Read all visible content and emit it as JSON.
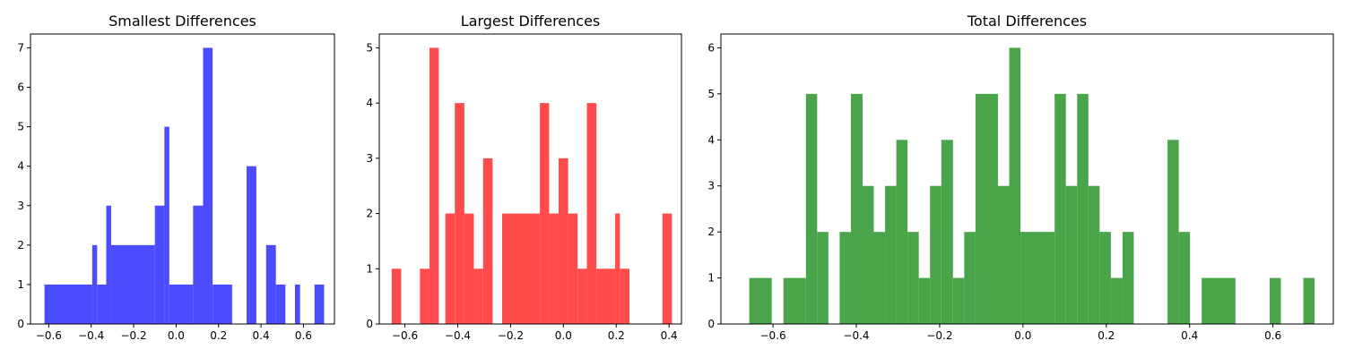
{
  "chart_data": [
    {
      "type": "bar",
      "title": "Smallest Differences",
      "color": "#4b4bff",
      "xlim": [
        -0.686,
        0.746
      ],
      "ylim": [
        0,
        7.35
      ],
      "xticks": [
        -0.6,
        -0.4,
        -0.2,
        0.0,
        0.2,
        0.4,
        0.6
      ],
      "yticks": [
        0,
        1,
        2,
        3,
        4,
        5,
        6,
        7
      ],
      "bins": [
        {
          "x0": -0.62,
          "x1": -0.395,
          "y": 1
        },
        {
          "x0": -0.395,
          "x1": -0.372,
          "y": 2
        },
        {
          "x0": -0.372,
          "x1": -0.329,
          "y": 1
        },
        {
          "x0": -0.329,
          "x1": -0.306,
          "y": 3
        },
        {
          "x0": -0.306,
          "x1": -0.1,
          "y": 2
        },
        {
          "x0": -0.1,
          "x1": -0.055,
          "y": 3
        },
        {
          "x0": -0.055,
          "x1": -0.032,
          "y": 5
        },
        {
          "x0": -0.032,
          "x1": 0.08,
          "y": 1
        },
        {
          "x0": 0.08,
          "x1": 0.127,
          "y": 3
        },
        {
          "x0": 0.127,
          "x1": 0.172,
          "y": 7
        },
        {
          "x0": 0.172,
          "x1": 0.264,
          "y": 1
        },
        {
          "x0": 0.332,
          "x1": 0.378,
          "y": 4
        },
        {
          "x0": 0.424,
          "x1": 0.47,
          "y": 2
        },
        {
          "x0": 0.47,
          "x1": 0.515,
          "y": 1
        },
        {
          "x0": 0.56,
          "x1": 0.584,
          "y": 1
        },
        {
          "x0": 0.652,
          "x1": 0.697,
          "y": 1
        }
      ]
    },
    {
      "type": "bar",
      "title": "Largest Differences",
      "color": "#ff4b4b",
      "xlim": [
        -0.697,
        0.447
      ],
      "ylim": [
        0,
        5.25
      ],
      "xticks": [
        -0.6,
        -0.4,
        -0.2,
        0.0,
        0.2,
        0.4
      ],
      "yticks": [
        0,
        1,
        2,
        3,
        4,
        5
      ],
      "bins": [
        {
          "x0": -0.65,
          "x1": -0.614,
          "y": 1
        },
        {
          "x0": -0.543,
          "x1": -0.507,
          "y": 1
        },
        {
          "x0": -0.507,
          "x1": -0.472,
          "y": 5
        },
        {
          "x0": -0.447,
          "x1": -0.411,
          "y": 2
        },
        {
          "x0": -0.411,
          "x1": -0.375,
          "y": 4
        },
        {
          "x0": -0.375,
          "x1": -0.339,
          "y": 2
        },
        {
          "x0": -0.339,
          "x1": -0.304,
          "y": 1
        },
        {
          "x0": -0.304,
          "x1": -0.268,
          "y": 3
        },
        {
          "x0": -0.232,
          "x1": -0.089,
          "y": 2
        },
        {
          "x0": -0.089,
          "x1": -0.054,
          "y": 4
        },
        {
          "x0": -0.054,
          "x1": -0.018,
          "y": 2
        },
        {
          "x0": -0.018,
          "x1": 0.018,
          "y": 3
        },
        {
          "x0": 0.018,
          "x1": 0.054,
          "y": 2
        },
        {
          "x0": 0.054,
          "x1": 0.089,
          "y": 1
        },
        {
          "x0": 0.089,
          "x1": 0.125,
          "y": 4
        },
        {
          "x0": 0.125,
          "x1": 0.196,
          "y": 1
        },
        {
          "x0": 0.196,
          "x1": 0.214,
          "y": 2
        },
        {
          "x0": 0.214,
          "x1": 0.25,
          "y": 1
        },
        {
          "x0": 0.375,
          "x1": 0.411,
          "y": 2
        }
      ]
    },
    {
      "type": "bar",
      "title": "Total Differences",
      "color": "#4aa54a",
      "xlim": [
        -0.725,
        0.745
      ],
      "ylim": [
        0,
        6.3
      ],
      "xticks": [
        -0.6,
        -0.4,
        -0.2,
        0.0,
        0.2,
        0.4,
        0.6
      ],
      "yticks": [
        0,
        1,
        2,
        3,
        4,
        5,
        6
      ],
      "bins": [
        {
          "x0": -0.657,
          "x1": -0.603,
          "y": 1
        },
        {
          "x0": -0.575,
          "x1": -0.521,
          "y": 1
        },
        {
          "x0": -0.521,
          "x1": -0.494,
          "y": 5
        },
        {
          "x0": -0.494,
          "x1": -0.467,
          "y": 2
        },
        {
          "x0": -0.44,
          "x1": -0.413,
          "y": 2
        },
        {
          "x0": -0.413,
          "x1": -0.385,
          "y": 5
        },
        {
          "x0": -0.385,
          "x1": -0.358,
          "y": 3
        },
        {
          "x0": -0.358,
          "x1": -0.331,
          "y": 2
        },
        {
          "x0": -0.331,
          "x1": -0.304,
          "y": 3
        },
        {
          "x0": -0.304,
          "x1": -0.277,
          "y": 4
        },
        {
          "x0": -0.277,
          "x1": -0.25,
          "y": 2
        },
        {
          "x0": -0.25,
          "x1": -0.223,
          "y": 1
        },
        {
          "x0": -0.223,
          "x1": -0.196,
          "y": 3
        },
        {
          "x0": -0.196,
          "x1": -0.168,
          "y": 4
        },
        {
          "x0": -0.168,
          "x1": -0.141,
          "y": 1
        },
        {
          "x0": -0.141,
          "x1": -0.114,
          "y": 2
        },
        {
          "x0": -0.114,
          "x1": -0.06,
          "y": 5
        },
        {
          "x0": -0.06,
          "x1": -0.033,
          "y": 3
        },
        {
          "x0": -0.033,
          "x1": -0.006,
          "y": 6
        },
        {
          "x0": -0.006,
          "x1": 0.076,
          "y": 2
        },
        {
          "x0": 0.076,
          "x1": 0.103,
          "y": 5
        },
        {
          "x0": 0.103,
          "x1": 0.13,
          "y": 3
        },
        {
          "x0": 0.13,
          "x1": 0.157,
          "y": 5
        },
        {
          "x0": 0.157,
          "x1": 0.184,
          "y": 3
        },
        {
          "x0": 0.184,
          "x1": 0.211,
          "y": 2
        },
        {
          "x0": 0.211,
          "x1": 0.239,
          "y": 1
        },
        {
          "x0": 0.239,
          "x1": 0.266,
          "y": 2
        },
        {
          "x0": 0.347,
          "x1": 0.374,
          "y": 4
        },
        {
          "x0": 0.374,
          "x1": 0.401,
          "y": 2
        },
        {
          "x0": 0.429,
          "x1": 0.51,
          "y": 1
        },
        {
          "x0": 0.592,
          "x1": 0.619,
          "y": 1
        },
        {
          "x0": 0.673,
          "x1": 0.7,
          "y": 1
        }
      ]
    }
  ]
}
